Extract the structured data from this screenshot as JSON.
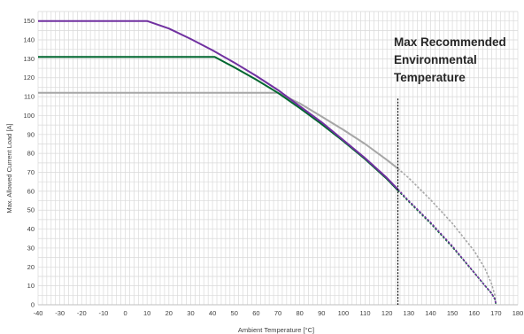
{
  "chart_data": {
    "type": "line",
    "title": "",
    "xlabel": "Ambient Temperature [°C]",
    "ylabel": "Max. Allowed Current Load [A]",
    "xlim": [
      -40,
      180
    ],
    "ylim": [
      0,
      155
    ],
    "x_ticks": [
      -40,
      -30,
      -20,
      -10,
      0,
      10,
      20,
      30,
      40,
      50,
      60,
      70,
      80,
      90,
      100,
      110,
      120,
      130,
      140,
      150,
      160,
      170,
      180
    ],
    "y_ticks": [
      0,
      10,
      20,
      30,
      40,
      50,
      60,
      70,
      80,
      90,
      100,
      110,
      120,
      130,
      140,
      150
    ],
    "grid": true,
    "minor_x_step": 2,
    "annotation": {
      "lines": [
        "Max Recommended",
        "Environmental",
        "Temperature"
      ],
      "x": 125,
      "line_top_y": 109
    },
    "series": [
      {
        "color": "#7030a0",
        "x": [
          -40,
          10,
          20,
          30,
          40,
          50,
          60,
          70,
          80,
          90,
          100,
          110,
          120,
          125,
          130,
          140,
          150,
          160,
          165,
          168,
          169.5,
          170
        ],
        "values": [
          150,
          150,
          146,
          140.5,
          134.5,
          128,
          121,
          113.5,
          105,
          96.5,
          87,
          77.5,
          67,
          61,
          55,
          43.5,
          31,
          17,
          10,
          6,
          3,
          0
        ]
      },
      {
        "color": "#00662f",
        "x": [
          -40,
          41,
          50,
          60,
          70,
          80,
          90,
          100,
          110,
          120,
          125,
          130,
          140,
          150,
          160,
          165,
          168,
          169.5,
          170
        ],
        "values": [
          131,
          131,
          125.5,
          119,
          112,
          104,
          95.5,
          86.5,
          77,
          66.5,
          60.5,
          54.5,
          43,
          30.5,
          17,
          10,
          6,
          3,
          0
        ]
      },
      {
        "color": "#a6a6a6",
        "x": [
          -40,
          70,
          80,
          90,
          100,
          110,
          120,
          125,
          130,
          140,
          150,
          160,
          165,
          168,
          169.5,
          170
        ],
        "values": [
          112,
          112,
          106.5,
          99.5,
          92.5,
          85,
          76.5,
          72,
          67,
          55.5,
          43,
          28.5,
          19,
          11,
          5,
          0
        ]
      }
    ],
    "colors": {
      "grid": "#d9d9d9",
      "axis": "#bfbfbf",
      "annotation_line": "#000000"
    }
  }
}
